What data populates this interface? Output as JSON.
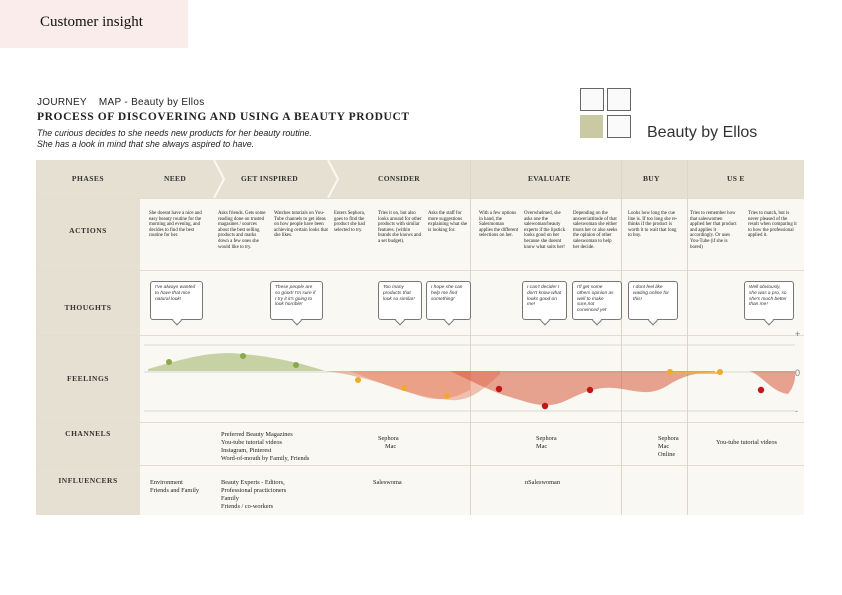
{
  "header": {
    "tab_label": "Customer insight"
  },
  "journey": {
    "title_left": "JOURNEY",
    "title_right": "MAP - Beauty by Ellos",
    "subtitle": "PROCESS OF DISCOVERING AND USING A BEAUTY PRODUCT",
    "desc_line1": "The curious decides to she needs new products for her beauty routine.",
    "desc_line2": "She has a look in mind that she always aspired to have.",
    "brand": "Beauty by Ellos"
  },
  "rows": {
    "phases": "PHASES",
    "actions": "ACTIONS",
    "thoughts": "THOUGHTS",
    "feelings": "FEELINGS",
    "channels": "CHANNELS",
    "influencers": "INFLUENCERS"
  },
  "phases": [
    "NEED",
    "GET INSPIRED",
    "CONSIDER",
    "EVALUATE",
    "BUY",
    "US E"
  ],
  "scale": {
    "plus": "+",
    "zero": "0",
    "minus": "-"
  },
  "actions": [
    "She doesnt have a nice and easy beauty routine for the morning and evening, and decides to find the best routine for her.",
    "Asks friends. Gets some reading done on trusted magasines / sources about the best selling products and marks down a few ones she would like to try.",
    "Watches tutorials on You-Tube channels to get ideas on how people have been achieving certain looks that she likes.",
    "Enters Sephora, goes to find the product she had selected to try.",
    "Tries it on, but also looks around for other products with similar features. (within brands she knows and a set budget).",
    "Asks the staff for more suggestions explaining what she is looking for.",
    "With a few options in hand, the Salesmoman applies the different selections on her.",
    "Overwhelmed, she asks one the salewoman/beauty experts if the lipstick looks good on her because she doesnt know what suits her!",
    "Depending on the answer/attitude of that saleswoman she either trusts her or also seeks the opinion of other saleswoman to help her decide.",
    "Looks how long the cue line is. If too long she re-thinks if the product is worth it to wait that long to buy.",
    "Tries to remember how that saleswomen applied her that product and applies it accordingly. Or uses You-Tube (if she is bored)",
    "Tries to match, but is never pleased of the result when comparing it to how the professional applied it."
  ],
  "thoughts": [
    "I've always wanted to have that nice natural look!",
    "These people are so good! I'm sure if I try it it's going to look horrible!",
    "Too many products that look so similar!",
    "I hope she can help me find something!",
    "I can't decide! I don't know what looks good on me!",
    "I'll get some others opinion as well to make sure,not convinced yet",
    "I dont feel like waiting online for this!",
    "Well obviously, she was a pro, so she's much better than me!"
  ],
  "channels": {
    "inspired": [
      "Preferred Beauty Magazines",
      "You-tube tutorial videos",
      "Instagram, Pinterest",
      "Word-of-mouth by Family, Friends"
    ],
    "consider": [
      "Sephora",
      "Mac"
    ],
    "evaluate": [
      "Sephora",
      "Mac"
    ],
    "buy": [
      "Sephora",
      "Mac",
      "Online"
    ],
    "use": [
      "You-tube tutorial videos"
    ]
  },
  "influencers": {
    "need": [
      "Environment",
      "Friends and Family"
    ],
    "inspired": [
      "Beauty Experts - Editors,",
      "Professional practicioners",
      "Family",
      "Friends / co-workers"
    ],
    "consider": [
      "Saleswoma"
    ],
    "evaluate": [
      "nSaleswoman"
    ]
  },
  "colors": {
    "positive": "#b4c48a",
    "negative": "#e8866a",
    "neutral": "#f3b32c",
    "point_pos": "#8aa84a",
    "point_neutral": "#f0a92a",
    "point_neg": "#c01818",
    "label_bg": "#e6e0d2"
  }
}
